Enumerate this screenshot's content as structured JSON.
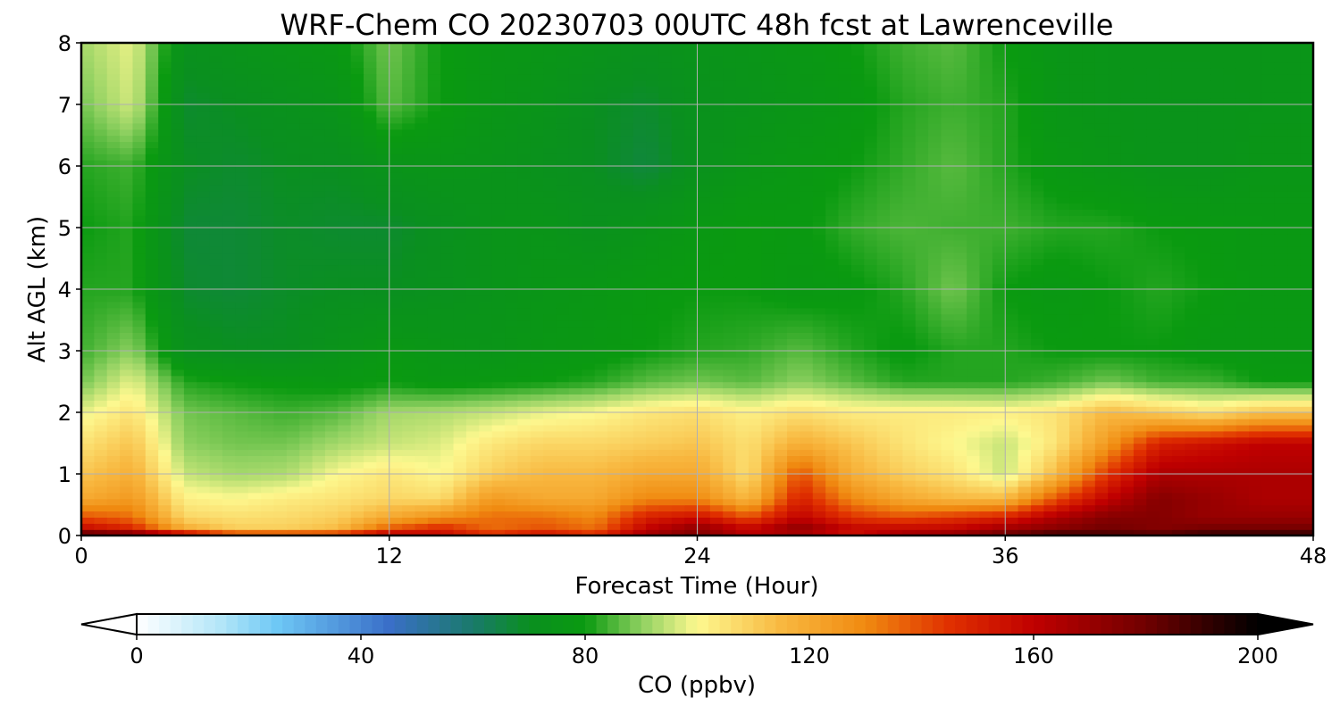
{
  "chart_data": {
    "type": "heatmap",
    "title": "WRF-Chem CO  20230703 00UTC 48h fcst at Lawrenceville",
    "xlabel": "Forecast Time (Hour)",
    "ylabel": "Alt AGL (km)",
    "xlim": [
      0,
      48
    ],
    "ylim": [
      0,
      8
    ],
    "x_ticks": [
      "0",
      "12",
      "24",
      "36",
      "48"
    ],
    "y_ticks": [
      "0",
      "1",
      "2",
      "3",
      "4",
      "5",
      "6",
      "7",
      "8"
    ],
    "grid": true,
    "colorbar": {
      "label": "CO  (ppbv)",
      "min": 0,
      "max": 200,
      "ticks": [
        "0",
        "40",
        "80",
        "120",
        "160",
        "200"
      ],
      "extend": "both",
      "colors": {
        "0": "#ffffff",
        "15": "#b3e6f8",
        "25": "#6ec8f5",
        "45": "#3a6fc8",
        "60": "#1a7a6a",
        "70": "#0a8f20",
        "80": "#0a9a10",
        "90": "#8ed060",
        "100": "#fdf88f",
        "115": "#f8b840",
        "130": "#f08a10",
        "145": "#e03000",
        "160": "#c00000",
        "180": "#700000",
        "200": "#000000"
      }
    },
    "x": [
      0,
      2,
      4,
      6,
      8,
      10,
      12,
      14,
      16,
      18,
      20,
      22,
      24,
      26,
      28,
      30,
      32,
      34,
      36,
      38,
      40,
      42,
      44,
      46,
      48
    ],
    "y": [
      0,
      0.1,
      0.3,
      0.6,
      1.0,
      1.5,
      2.0,
      2.5,
      3.0,
      4.0,
      5.0,
      6.0,
      7.0,
      8.0
    ],
    "values": [
      [
        195,
        190,
        178,
        160,
        160,
        160,
        170,
        160,
        150,
        160,
        150,
        170,
        175,
        160,
        160,
        150,
        170,
        175,
        185,
        195,
        190,
        190,
        195,
        195,
        195
      ],
      [
        160,
        150,
        120,
        110,
        110,
        115,
        140,
        150,
        135,
        140,
        135,
        160,
        175,
        160,
        175,
        160,
        160,
        160,
        170,
        175,
        180,
        175,
        180,
        180,
        180
      ],
      [
        140,
        135,
        108,
        106,
        107,
        110,
        120,
        128,
        135,
        135,
        130,
        150,
        155,
        140,
        160,
        145,
        140,
        145,
        150,
        165,
        175,
        175,
        170,
        170,
        170
      ],
      [
        120,
        125,
        102,
        100,
        103,
        105,
        108,
        107,
        125,
        120,
        120,
        130,
        130,
        115,
        150,
        130,
        120,
        115,
        115,
        140,
        160,
        175,
        170,
        165,
        165
      ],
      [
        112,
        118,
        95,
        92,
        93,
        100,
        104,
        100,
        110,
        115,
        115,
        120,
        120,
        106,
        140,
        118,
        110,
        105,
        95,
        115,
        145,
        165,
        165,
        165,
        165
      ],
      [
        105,
        112,
        90,
        88,
        88,
        92,
        95,
        97,
        104,
        108,
        108,
        110,
        112,
        106,
        118,
        112,
        105,
        100,
        95,
        105,
        125,
        150,
        155,
        160,
        160
      ],
      [
        98,
        105,
        88,
        86,
        84,
        86,
        92,
        93,
        95,
        98,
        100,
        104,
        106,
        102,
        106,
        103,
        103,
        103,
        102,
        105,
        115,
        110,
        105,
        112,
        112
      ],
      [
        88,
        98,
        82,
        80,
        79,
        78,
        80,
        78,
        79,
        80,
        82,
        86,
        88,
        86,
        90,
        86,
        82,
        82,
        82,
        84,
        88,
        84,
        84,
        80,
        80
      ],
      [
        84,
        90,
        72,
        70,
        70,
        74,
        78,
        76,
        75,
        77,
        78,
        80,
        82,
        83,
        86,
        82,
        79,
        82,
        82,
        80,
        80,
        80,
        78,
        78,
        78
      ],
      [
        82,
        82,
        68,
        67,
        69,
        70,
        70,
        72,
        74,
        76,
        77,
        79,
        80,
        80,
        78,
        79,
        82,
        88,
        80,
        78,
        80,
        82,
        80,
        78,
        78
      ],
      [
        80,
        82,
        67,
        67,
        69,
        68,
        68,
        71,
        74,
        75,
        72,
        75,
        78,
        80,
        79,
        83,
        85,
        84,
        84,
        82,
        82,
        80,
        79,
        78,
        78
      ],
      [
        82,
        84,
        70,
        68,
        70,
        70,
        74,
        75,
        74,
        72,
        70,
        66,
        72,
        76,
        78,
        80,
        83,
        86,
        82,
        78,
        76,
        74,
        74,
        76,
        76
      ],
      [
        88,
        96,
        68,
        70,
        72,
        74,
        86,
        80,
        76,
        74,
        70,
        68,
        72,
        74,
        76,
        78,
        82,
        84,
        82,
        76,
        75,
        74,
        74,
        75,
        75
      ],
      [
        92,
        98,
        72,
        74,
        76,
        78,
        88,
        80,
        77,
        76,
        74,
        72,
        74,
        75,
        77,
        80,
        84,
        86,
        80,
        76,
        75,
        75,
        75,
        75,
        75
      ]
    ]
  }
}
